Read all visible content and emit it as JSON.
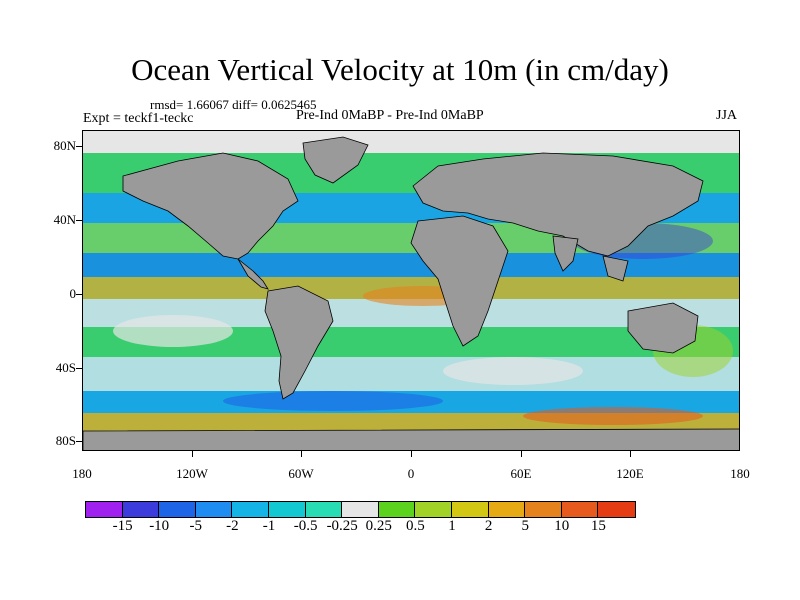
{
  "title": "Ocean Vertical Velocity at 10m (in cm/day)",
  "stats": "rmsd= 1.66067 diff= 0.0625465",
  "expt": "Expt = teckf1-teckc",
  "cases": "Pre-Ind 0MaBP - Pre-Ind 0MaBP",
  "season": "JJA",
  "y_axis_labels": [
    "80N",
    "40N",
    "0",
    "40S",
    "80S"
  ],
  "x_axis_labels": [
    "180",
    "120W",
    "60W",
    "0",
    "60E",
    "120E",
    "180"
  ],
  "colorbar": {
    "colors": [
      "#a020f0",
      "#3c3cdc",
      "#1e64e6",
      "#1e8cf0",
      "#14b4e6",
      "#14c8d2",
      "#28dcb4",
      "#e6e6e6",
      "#5ad21e",
      "#a0d228",
      "#d2c814",
      "#e6aa14",
      "#e6821e",
      "#e65a1e",
      "#e63c14"
    ],
    "labels": [
      "-15",
      "-10",
      "-5",
      "-2",
      "-1",
      "-0.5",
      "-0.25",
      "0.25",
      "0.5",
      "1",
      "2",
      "5",
      "10",
      "15"
    ]
  },
  "map_colors": {
    "land": "#9a9a9a",
    "ocean_base": "#14c8d2",
    "neutral": "#e6e6e6"
  }
}
